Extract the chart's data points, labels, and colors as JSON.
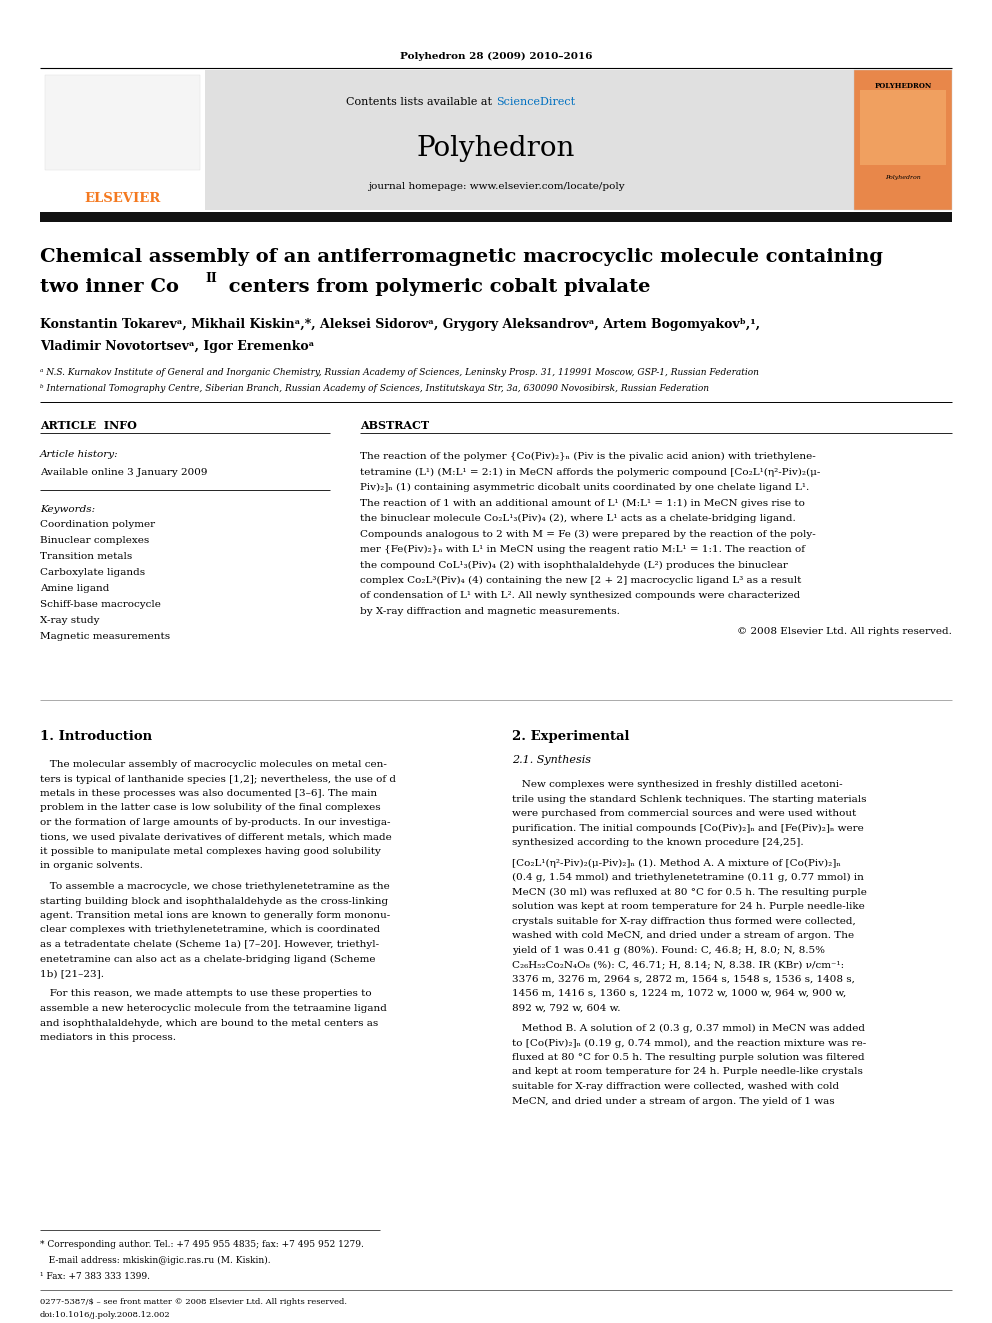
{
  "background": "#ffffff",
  "journal_header_text": "Polyhedron 28 (2009) 2010–2016",
  "sciencedirect_color": "#0070c0",
  "journal_name": "Polyhedron",
  "elsevier_color": "#f47920",
  "header_bg": "#e0e0e0",
  "title_line1": "Chemical assembly of an antiferromagnetic macrocyclic molecule containing",
  "title_line2_pre": "two inner Co",
  "title_line2_sup": "II",
  "title_line2_post": " centers from polymeric cobalt pivalate",
  "authors_line1": "Konstantin Tokarevᵃ, Mikhail Kiskinᵃ,*, Aleksei Sidorovᵃ, Grygory Aleksandrovᵃ, Artem Bogomyakovᵇ,¹,",
  "authors_line2": "Vladimir Novotortsevᵃ, Igor Eremenkoᵃ",
  "affil_a": "ᵃ N.S. Kurnakov Institute of General and Inorganic Chemistry, Russian Academy of Sciences, Leninsky Prosp. 31, 119991 Moscow, GSP-1, Russian Federation",
  "affil_b": "ᵇ International Tomography Centre, Siberian Branch, Russian Academy of Sciences, Institutskaya Str, 3a, 630090 Novosibirsk, Russian Federation",
  "article_info_title": "ARTICLE  INFO",
  "abstract_title": "ABSTRACT",
  "article_history": "Article history:",
  "available_online": "Available online 3 January 2009",
  "keywords_title": "Keywords:",
  "keywords": [
    "Coordination polymer",
    "Binuclear complexes",
    "Transition metals",
    "Carboxylate ligands",
    "Amine ligand",
    "Schiff-base macrocycle",
    "X-ray study",
    "Magnetic measurements"
  ],
  "copyright": "© 2008 Elsevier Ltd. All rights reserved.",
  "intro_title": "1. Introduction",
  "experimental_title": "2. Experimental",
  "synthesis_subtitle": "2.1. Synthesis",
  "footnote1": "* Corresponding author. Tel.: +7 495 955 4835; fax: +7 495 952 1279.",
  "footnote_email": "   E-mail address: mkiskin@igic.ras.ru (M. Kiskin).",
  "footnote2": "¹ Fax: +7 383 333 1399.",
  "footer_text": "0277-5387/$ – see front matter © 2008 Elsevier Ltd. All rights reserved.",
  "footer_doi": "doi:10.1016/j.poly.2008.12.002"
}
